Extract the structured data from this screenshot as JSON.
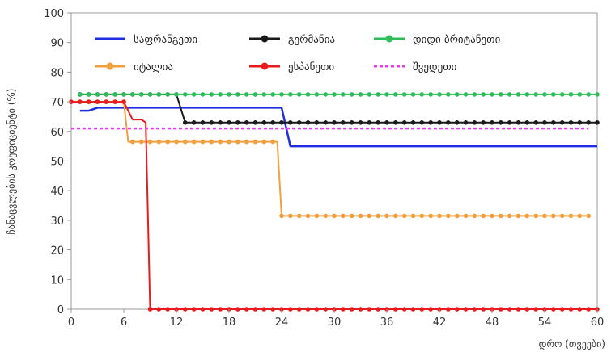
{
  "chart_data": {
    "type": "line",
    "title": "",
    "xlabel": "დრო (თვეები)",
    "ylabel": "ჩანაცვლების კოეფიციენტი (%)",
    "xlim": [
      0,
      60
    ],
    "ylim": [
      0,
      100
    ],
    "xticks": [
      0,
      6,
      12,
      18,
      24,
      30,
      36,
      42,
      48,
      54,
      60
    ],
    "yticks": [
      0,
      10,
      20,
      30,
      40,
      50,
      60,
      70,
      80,
      90,
      100
    ],
    "grid": false,
    "legend_position": "top",
    "series": [
      {
        "name": "საფრანგეთი",
        "color": "#1f2ee0",
        "dashed": false,
        "markers": false,
        "points": [
          [
            1,
            67
          ],
          [
            2,
            67
          ],
          [
            3,
            68
          ],
          [
            24,
            68
          ],
          [
            25,
            55
          ],
          [
            60,
            55
          ]
        ]
      },
      {
        "name": "იტალია",
        "color": "#f0a040",
        "dashed": false,
        "markers": true,
        "points": [
          [
            0,
            70
          ],
          [
            6,
            70
          ],
          [
            6.5,
            56.5
          ],
          [
            23.5,
            56.5
          ],
          [
            24,
            31.5
          ],
          [
            59,
            31.5
          ]
        ]
      },
      {
        "name": "გერმანია",
        "color": "#1a1a1a",
        "dashed": false,
        "markers": true,
        "points": [
          [
            1,
            72.5
          ],
          [
            12,
            72.5
          ],
          [
            13,
            63
          ],
          [
            60,
            63
          ]
        ]
      },
      {
        "name": "ესპანეთი",
        "color": "#e81c1c",
        "dashed": false,
        "markers": true,
        "points": [
          [
            0,
            70
          ],
          [
            6,
            70
          ],
          [
            7,
            64
          ],
          [
            8,
            64
          ],
          [
            8.5,
            63
          ],
          [
            9,
            0
          ],
          [
            60,
            0
          ]
        ]
      },
      {
        "name": "დიდი ბრიტანეთი",
        "color": "#2ebd5a",
        "dashed": false,
        "markers": true,
        "points": [
          [
            1,
            72.5
          ],
          [
            60,
            72.5
          ]
        ]
      },
      {
        "name": "შვედეთი",
        "color": "#e83de8",
        "dashed": true,
        "markers": false,
        "points": [
          [
            0,
            61
          ],
          [
            59,
            61
          ]
        ]
      }
    ]
  }
}
